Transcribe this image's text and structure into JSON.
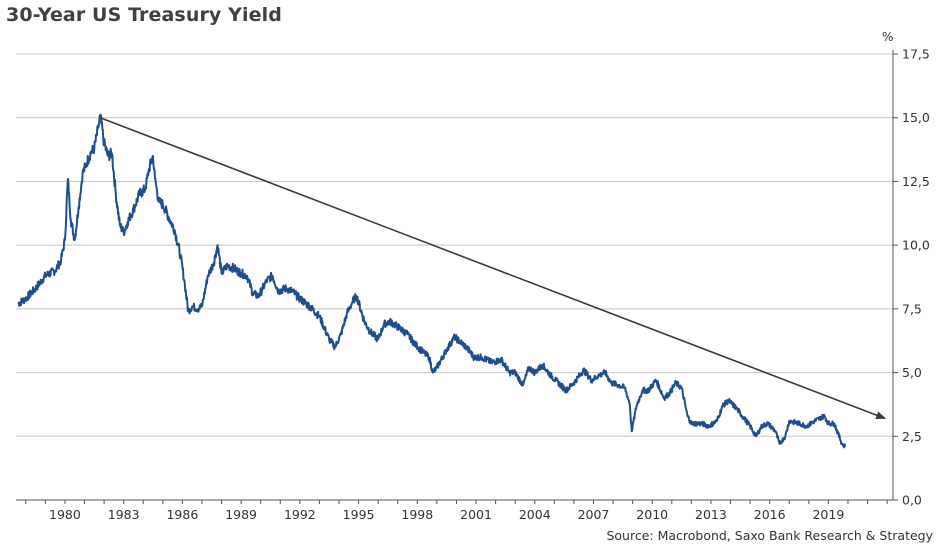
{
  "title": "30-Year US Treasury Yield",
  "unit": "%",
  "source": "Source: Macrobond, Saxo Bank Research & Strategy",
  "colors": {
    "series": "#1F4E8C",
    "trend": "#3A3A3A",
    "grid": "#C8C8C8",
    "axis": "#555555"
  },
  "chart_data": {
    "type": "line",
    "title": "30-Year US Treasury Yield",
    "ylabel": "%",
    "xlabel": "",
    "ylim": [
      0,
      17.5
    ],
    "xlim": [
      1977.5,
      2022.3
    ],
    "grid": true,
    "y_axis_side": "right",
    "yticks": [
      0,
      2.5,
      5,
      7.5,
      10,
      12.5,
      15,
      17.5
    ],
    "ytick_labels": [
      "0,0",
      "2,5",
      "5,0",
      "7,5",
      "10,0",
      "12,5",
      "15,0",
      "17,5"
    ],
    "xticks": [
      1980,
      1983,
      1986,
      1989,
      1992,
      1995,
      1998,
      2001,
      2004,
      2007,
      2010,
      2013,
      2016,
      2019
    ],
    "xtick_labels": [
      "1980",
      "1983",
      "1986",
      "1989",
      "1992",
      "1995",
      "1998",
      "2001",
      "2004",
      "2007",
      "2010",
      "2013",
      "2016",
      "2019"
    ],
    "series": [
      {
        "x": [
          1977.6,
          1978.0,
          1978.5,
          1979.0,
          1979.5,
          1979.8,
          1980.0,
          1980.15,
          1980.3,
          1980.5,
          1980.7,
          1980.9,
          1981.1,
          1981.3,
          1981.5,
          1981.7,
          1981.8,
          1982.0,
          1982.2,
          1982.4,
          1982.6,
          1982.8,
          1983.0,
          1983.2,
          1983.5,
          1983.8,
          1984.1,
          1984.3,
          1984.5,
          1984.6,
          1984.8,
          1985.0,
          1985.3,
          1985.6,
          1985.9,
          1986.1,
          1986.3,
          1986.5,
          1986.8,
          1987.0,
          1987.3,
          1987.6,
          1987.8,
          1988.0,
          1988.3,
          1988.6,
          1989.0,
          1989.3,
          1989.6,
          1989.9,
          1990.3,
          1990.6,
          1990.9,
          1991.3,
          1991.6,
          1992.0,
          1992.5,
          1993.0,
          1993.5,
          1993.8,
          1994.1,
          1994.4,
          1994.7,
          1994.9,
          1995.3,
          1995.6,
          1996.0,
          1996.3,
          1996.6,
          1997.0,
          1997.5,
          1997.9,
          1998.3,
          1998.6,
          1998.8,
          1999.0,
          1999.5,
          1999.9,
          2000.2,
          2000.5,
          2000.9,
          2001.3,
          2001.8,
          2002.3,
          2002.7,
          2003.0,
          2003.4,
          2003.7,
          2004.0,
          2004.4,
          2004.8,
          2005.2,
          2005.6,
          2006.0,
          2006.5,
          2006.9,
          2007.3,
          2007.6,
          2007.9,
          2008.3,
          2008.6,
          2008.85,
          2008.95,
          2009.2,
          2009.5,
          2009.8,
          2010.2,
          2010.6,
          2010.9,
          2011.2,
          2011.5,
          2011.8,
          2012.0,
          2012.5,
          2012.9,
          2013.3,
          2013.6,
          2013.9,
          2014.3,
          2014.7,
          2015.0,
          2015.3,
          2015.6,
          2015.9,
          2016.3,
          2016.5,
          2016.8,
          2017.0,
          2017.5,
          2017.9,
          2018.3,
          2018.8,
          2019.0,
          2019.3,
          2019.5,
          2019.7,
          2019.85
        ],
        "y": [
          7.7,
          7.9,
          8.3,
          8.8,
          9.0,
          9.4,
          10.2,
          12.6,
          11.0,
          10.2,
          11.5,
          12.8,
          13.2,
          13.6,
          13.8,
          14.6,
          15.1,
          14.0,
          13.5,
          13.6,
          12.0,
          10.8,
          10.5,
          10.9,
          11.4,
          12.0,
          12.2,
          13.0,
          13.5,
          12.6,
          11.7,
          11.6,
          11.1,
          10.6,
          9.6,
          8.6,
          7.4,
          7.6,
          7.5,
          7.6,
          8.8,
          9.3,
          10.0,
          8.9,
          9.2,
          9.1,
          8.9,
          8.8,
          8.1,
          8.0,
          8.6,
          8.8,
          8.2,
          8.3,
          8.2,
          7.9,
          7.6,
          7.2,
          6.3,
          6.0,
          6.5,
          7.3,
          7.8,
          8.0,
          7.0,
          6.6,
          6.3,
          6.9,
          7.0,
          6.8,
          6.5,
          6.1,
          5.8,
          5.6,
          5.0,
          5.2,
          5.9,
          6.4,
          6.2,
          6.0,
          5.6,
          5.6,
          5.4,
          5.5,
          5.0,
          5.0,
          4.5,
          5.2,
          5.0,
          5.3,
          4.9,
          4.6,
          4.3,
          4.6,
          5.1,
          4.7,
          4.9,
          5.0,
          4.6,
          4.5,
          4.4,
          3.8,
          2.7,
          3.7,
          4.3,
          4.3,
          4.7,
          4.0,
          4.2,
          4.6,
          4.4,
          3.3,
          3.0,
          3.0,
          2.9,
          3.1,
          3.7,
          3.9,
          3.6,
          3.2,
          2.9,
          2.5,
          2.9,
          3.0,
          2.7,
          2.2,
          2.5,
          3.1,
          3.0,
          2.9,
          3.1,
          3.3,
          3.0,
          3.0,
          2.6,
          2.2,
          2.1
        ]
      }
    ],
    "annotations": [
      {
        "type": "trend-arrow",
        "from": [
          1981.8,
          15.0
        ],
        "to": [
          2021.9,
          3.2
        ]
      }
    ]
  }
}
